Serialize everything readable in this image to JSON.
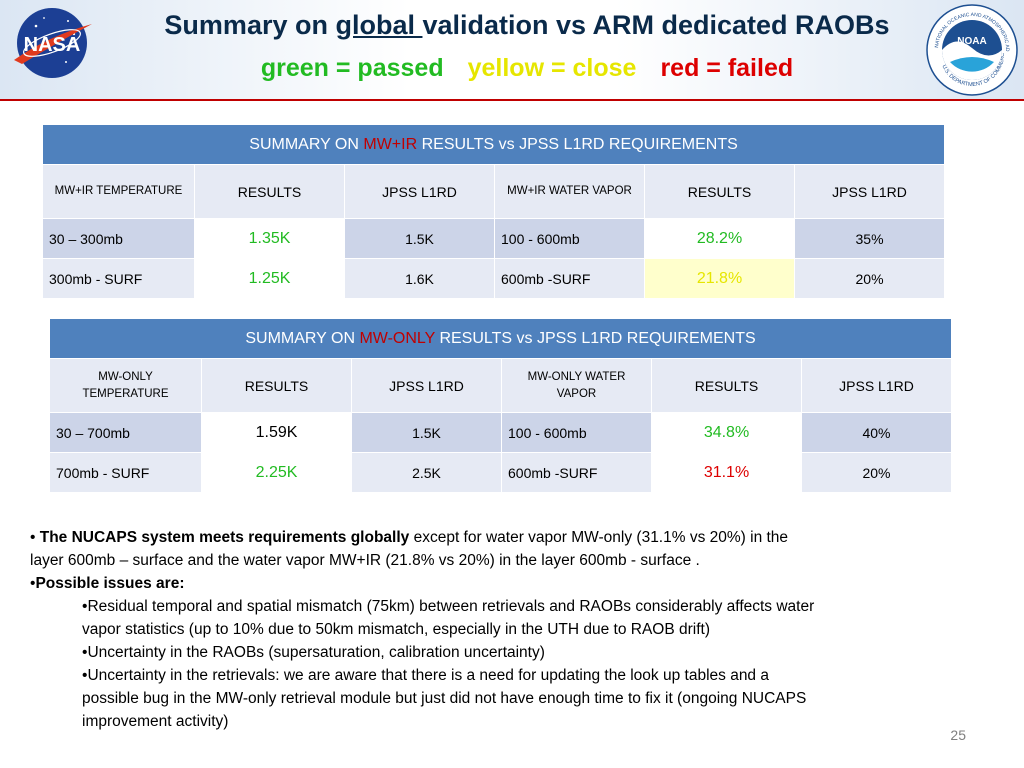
{
  "colors": {
    "passed": "#22bb22",
    "close": "#e6e600",
    "failed": "#dd0000",
    "banner": "#4f81bd",
    "title": "#0a2a4a"
  },
  "title": {
    "prefix": "Summary on ",
    "underlined": "global ",
    "suffix": "validation vs ARM dedicated RAOBs",
    "legend_passed": "green = passed",
    "legend_close": "yellow = close",
    "legend_failed": "red = failed"
  },
  "logos": {
    "nasa": {
      "icon": "nasa-meatball-logo",
      "text": "NASA"
    },
    "noaa": {
      "icon": "noaa-seal-logo",
      "text": "NOAA",
      "ring_top": "NATIONAL OCEANIC AND ATMOSPHERIC ADMINISTRATION",
      "ring_bottom": "U.S. DEPARTMENT OF COMMERCE"
    }
  },
  "tables": [
    {
      "banner_prefix": "SUMMARY ON ",
      "banner_accent": "MW+IR",
      "banner_suffix": " RESULTS vs JPSS L1RD REQUIREMENTS",
      "headers": [
        "MW+IR TEMPERATURE",
        "RESULTS",
        "JPSS L1RD",
        "MW+IR WATER VAPOR",
        "RESULTS",
        "JPSS L1RD"
      ],
      "rows": [
        {
          "temp_layer": "30 – 300mb",
          "temp_result": "1.35K",
          "temp_result_status": "passed",
          "temp_req": "1.5K",
          "wv_layer": "100 - 600mb",
          "wv_result": "28.2%",
          "wv_result_status": "passed",
          "wv_req": "35%"
        },
        {
          "temp_layer": "300mb - SURF",
          "temp_result": "1.25K",
          "temp_result_status": "passed",
          "temp_req": "1.6K",
          "wv_layer": "600mb  -SURF",
          "wv_result": "21.8%",
          "wv_result_status": "close",
          "wv_req": "20%"
        }
      ]
    },
    {
      "banner_prefix": "SUMMARY ON ",
      "banner_accent": "MW-ONLY",
      "banner_suffix": " RESULTS vs JPSS L1RD REQUIREMENTS",
      "headers": [
        "MW-ONLY TEMPERATURE",
        "RESULTS",
        "JPSS L1RD",
        "MW-ONLY WATER VAPOR",
        "RESULTS",
        "JPSS L1RD"
      ],
      "rows": [
        {
          "temp_layer": "30 – 700mb",
          "temp_result": "1.59K",
          "temp_result_status": "neutral",
          "temp_req": "1.5K",
          "wv_layer": "100 - 600mb",
          "wv_result": "34.8%",
          "wv_result_status": "passed",
          "wv_req": "40%"
        },
        {
          "temp_layer": "700mb - SURF",
          "temp_result": "2.25K",
          "temp_result_status": "passed",
          "temp_req": "2.5K",
          "wv_layer": "600mb  -SURF",
          "wv_result": "31.1%",
          "wv_result_status": "failed",
          "wv_req": "20%"
        }
      ]
    }
  ],
  "bullets": {
    "b1_bold": "The NUCAPS system meets requirements globally",
    "b1_rest_line1": " except for water vapor MW-only (31.1% vs 20%) in the",
    "b1_rest_line2": "layer 600mb – surface  and the water vapor MW+IR  (21.8% vs 20%) in the layer 600mb - surface .",
    "b2_bold": "Possible issues are:",
    "sub1_line1": "Residual temporal and spatial mismatch (75km) between retrievals and RAOBs considerably affects water",
    "sub1_line2": "vapor statistics (up to 10% due to 50km mismatch, especially in the UTH due to RAOB drift)",
    "sub2": "Uncertainty in the RAOBs (supersaturation, calibration uncertainty)",
    "sub3_line1": "Uncertainty in the retrievals: we are aware that there is a need for updating the look up tables and a",
    "sub3_line2": "possible bug in the MW-only retrieval module but just did not have enough time to fix it (ongoing NUCAPS",
    "sub3_line3": "improvement activity)"
  },
  "page_number": "25"
}
